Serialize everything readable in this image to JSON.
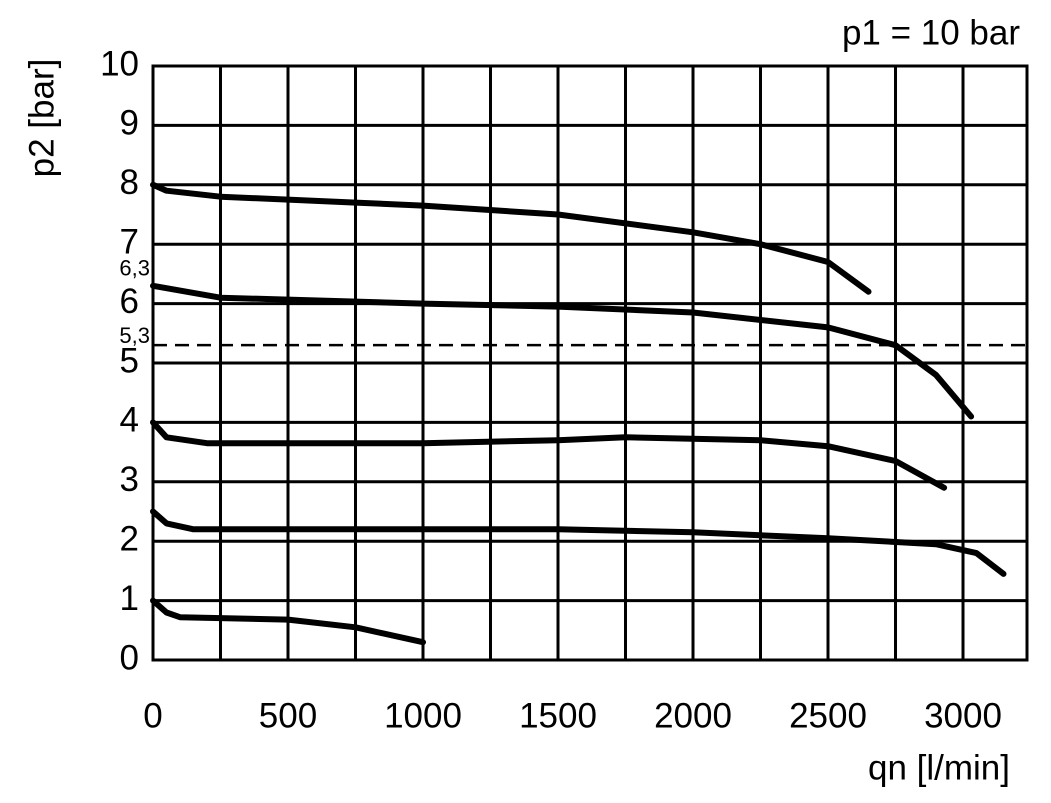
{
  "chart_data": {
    "type": "line",
    "annotation_top": "p1 = 10 bar",
    "y_label": "p2 [bar]",
    "x_label": "qn [l/min]",
    "xlim": [
      0,
      3237
    ],
    "ylim": [
      0,
      10
    ],
    "xticks": [
      0,
      500,
      1000,
      1500,
      2000,
      2500,
      3000
    ],
    "xminorticks": [
      250,
      750,
      1250,
      1750,
      2250,
      2750
    ],
    "yticks": [
      0,
      1,
      2,
      3,
      4,
      5,
      6,
      7,
      8,
      9,
      10
    ],
    "grid": true,
    "reference_lines": [
      {
        "value": 5.3,
        "label": "5,3",
        "dashed": true
      }
    ],
    "value_marks": [
      {
        "value": 6.3,
        "label": "6,3"
      }
    ],
    "series": [
      {
        "color": "#000000",
        "x": [
          0,
          50,
          250,
          750,
          1000,
          1500,
          2000,
          2250,
          2500,
          2650
        ],
        "values": [
          8,
          7.9,
          7.8,
          7.7,
          7.65,
          7.5,
          7.2,
          7.0,
          6.7,
          6.2
        ]
      },
      {
        "color": "#000000",
        "x": [
          0,
          250,
          1000,
          1500,
          2000,
          2500,
          2750,
          2900,
          3030
        ],
        "values": [
          6.3,
          6.1,
          6.0,
          5.95,
          5.85,
          5.6,
          5.3,
          4.8,
          4.1
        ]
      },
      {
        "color": "#000000",
        "x": [
          0,
          50,
          200,
          500,
          1000,
          1500,
          1750,
          2250,
          2500,
          2750,
          2930
        ],
        "values": [
          4,
          3.75,
          3.65,
          3.65,
          3.65,
          3.7,
          3.75,
          3.7,
          3.6,
          3.35,
          2.9
        ]
      },
      {
        "color": "#000000",
        "x": [
          0,
          50,
          150,
          1500,
          2000,
          2500,
          2900,
          3050,
          3150
        ],
        "values": [
          2.5,
          2.3,
          2.2,
          2.2,
          2.15,
          2.05,
          1.95,
          1.8,
          1.45
        ]
      },
      {
        "color": "#000000",
        "x": [
          0,
          50,
          100,
          500,
          750,
          1000
        ],
        "values": [
          1,
          0.8,
          0.72,
          0.68,
          0.55,
          0.3
        ]
      }
    ]
  }
}
